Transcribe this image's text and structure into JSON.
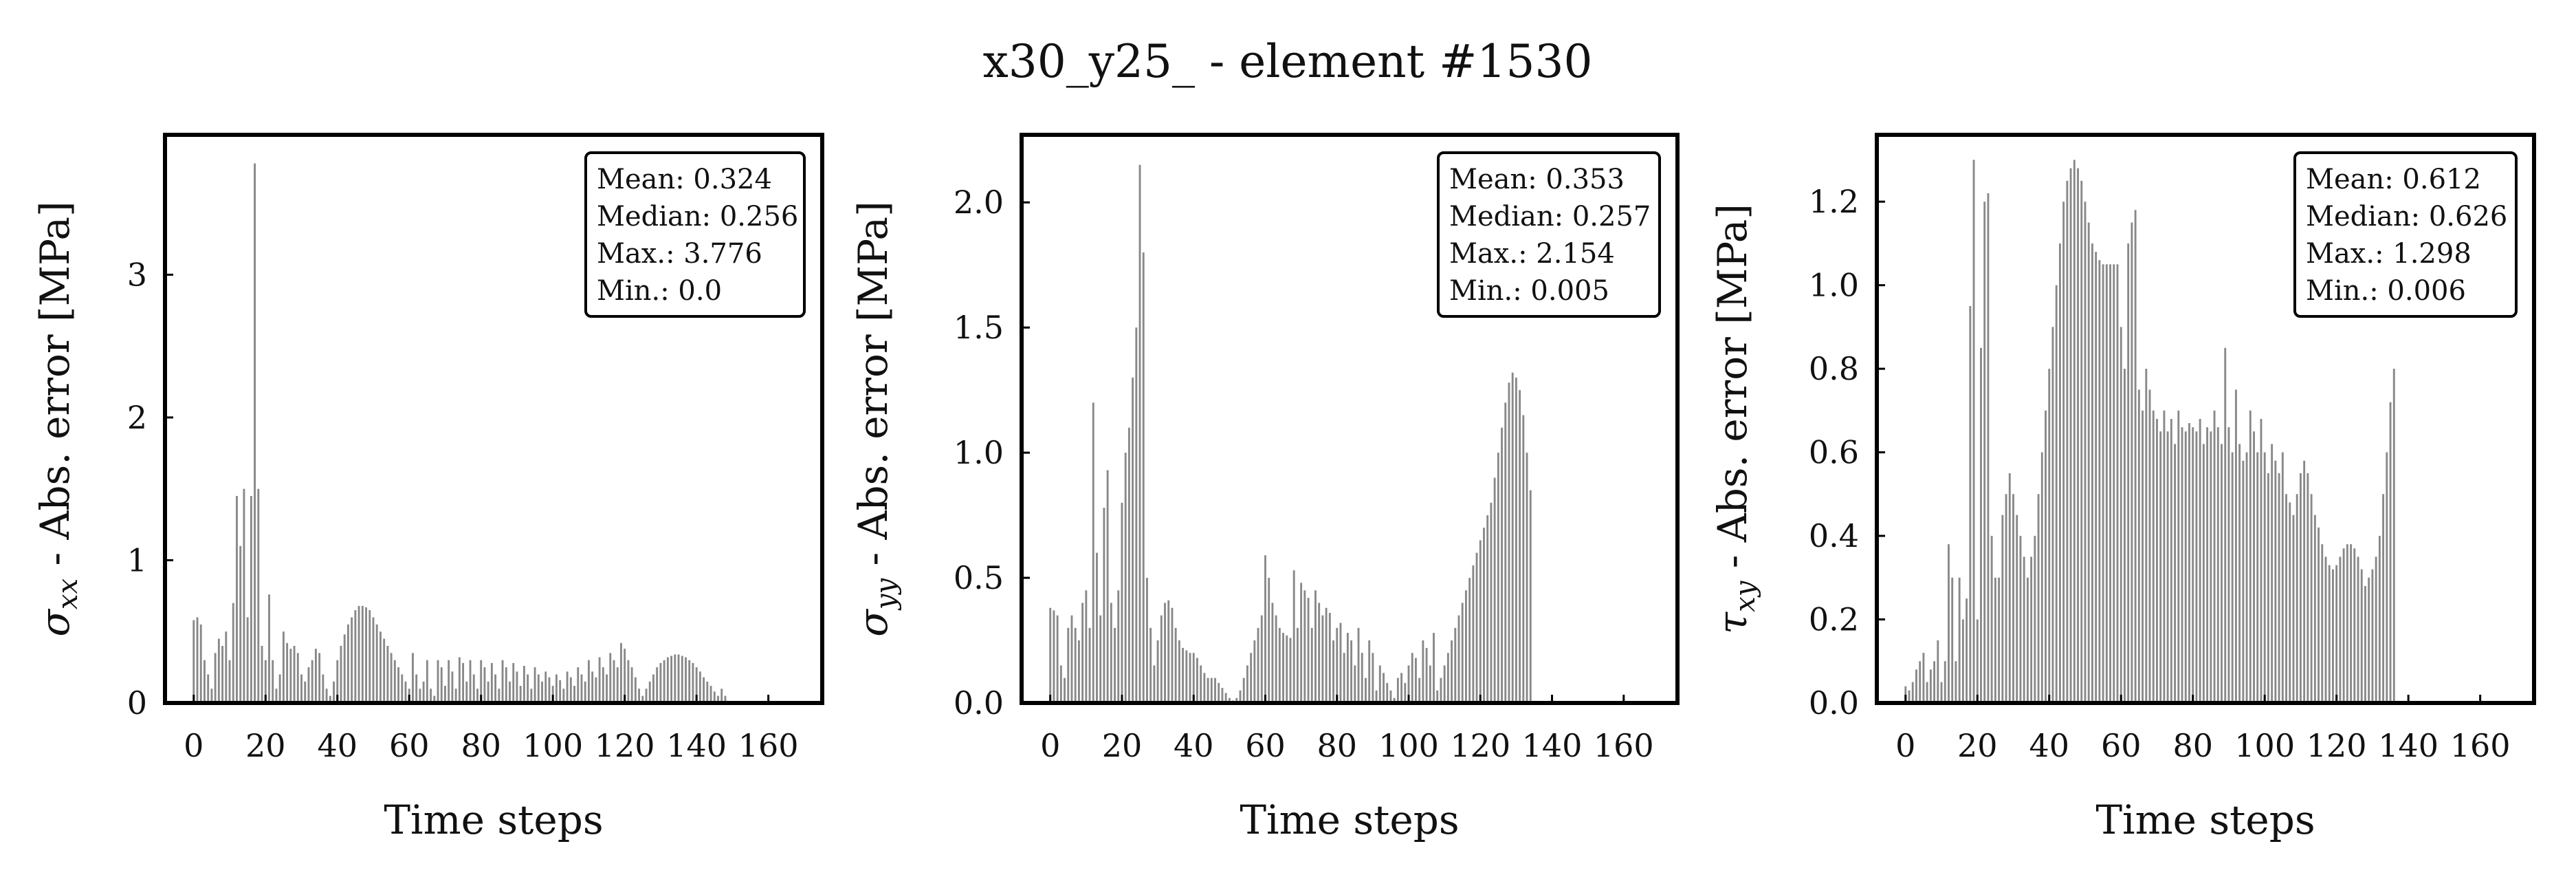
{
  "figure": {
    "suptitle": "x30_y25_ - element #1530"
  },
  "chart_data": [
    {
      "type": "bar",
      "xlabel": "Time steps",
      "ylabel": "σ_xx - Abs. error [MPa]",
      "ylabel_main": "σ",
      "ylabel_sub": "xx",
      "ylabel_rest": " - Abs. error [MPa]",
      "xlim": [
        -8,
        175
      ],
      "ylim": [
        0,
        3.98
      ],
      "xticks": [
        0,
        20,
        40,
        60,
        80,
        100,
        120,
        140,
        160
      ],
      "xtick_labels": [
        "0",
        "20",
        "40",
        "60",
        "80",
        "100",
        "120",
        "140",
        "160"
      ],
      "yticks": [
        0,
        1,
        2,
        3
      ],
      "ytick_labels": [
        "0",
        "1",
        "2",
        "3"
      ],
      "bar_color": "#888888",
      "stats": {
        "mean": "Mean: 0.324",
        "median": "Median: 0.256",
        "max": "Max.: 3.776",
        "min": "Min.: 0.0"
      },
      "values": [
        0.58,
        0.6,
        0.55,
        0.3,
        0.2,
        0.1,
        0.35,
        0.45,
        0.4,
        0.5,
        0.3,
        0.7,
        1.45,
        1.1,
        1.5,
        0.6,
        1.45,
        3.78,
        1.5,
        0.4,
        0.3,
        0.76,
        0.3,
        0.1,
        0.2,
        0.5,
        0.42,
        0.38,
        0.4,
        0.35,
        0.2,
        0.15,
        0.25,
        0.3,
        0.38,
        0.35,
        0.2,
        0.1,
        0.05,
        0.15,
        0.3,
        0.4,
        0.48,
        0.55,
        0.6,
        0.65,
        0.68,
        0.68,
        0.67,
        0.65,
        0.6,
        0.55,
        0.5,
        0.45,
        0.4,
        0.35,
        0.3,
        0.25,
        0.2,
        0.15,
        0.1,
        0.35,
        0.2,
        0.1,
        0.15,
        0.3,
        0.1,
        0.05,
        0.3,
        0.25,
        0.12,
        0.3,
        0.22,
        0.1,
        0.32,
        0.28,
        0.15,
        0.3,
        0.2,
        0.1,
        0.3,
        0.25,
        0.15,
        0.28,
        0.2,
        0.1,
        0.3,
        0.25,
        0.15,
        0.28,
        0.22,
        0.12,
        0.26,
        0.2,
        0.1,
        0.25,
        0.2,
        0.15,
        0.22,
        0.18,
        0.12,
        0.2,
        0.16,
        0.1,
        0.22,
        0.18,
        0.12,
        0.25,
        0.2,
        0.15,
        0.3,
        0.22,
        0.18,
        0.32,
        0.25,
        0.2,
        0.35,
        0.3,
        0.25,
        0.42,
        0.38,
        0.3,
        0.25,
        0.18,
        0.1,
        0.05,
        0.1,
        0.15,
        0.2,
        0.25,
        0.28,
        0.3,
        0.32,
        0.33,
        0.34,
        0.34,
        0.33,
        0.32,
        0.3,
        0.28,
        0.25,
        0.22,
        0.18,
        0.15,
        0.12,
        0.08,
        0.05,
        0.1,
        0.05
      ]
    },
    {
      "type": "bar",
      "xlabel": "Time steps",
      "ylabel": "σ_yy - Abs. error [MPa]",
      "ylabel_main": "σ",
      "ylabel_sub": "yy",
      "ylabel_rest": " - Abs. error [MPa]",
      "xlim": [
        -8,
        175
      ],
      "ylim": [
        0,
        2.27
      ],
      "xticks": [
        0,
        20,
        40,
        60,
        80,
        100,
        120,
        140,
        160
      ],
      "xtick_labels": [
        "0",
        "20",
        "40",
        "60",
        "80",
        "100",
        "120",
        "140",
        "160"
      ],
      "yticks": [
        0,
        0.5,
        1.0,
        1.5,
        2.0
      ],
      "ytick_labels": [
        "0.0",
        "0.5",
        "1.0",
        "1.5",
        "2.0"
      ],
      "bar_color": "#888888",
      "stats": {
        "mean": "Mean: 0.353",
        "median": "Median: 0.257",
        "max": "Max.: 2.154",
        "min": "Min.: 0.005"
      },
      "values": [
        0.38,
        0.37,
        0.35,
        0.15,
        0.1,
        0.3,
        0.35,
        0.3,
        0.25,
        0.4,
        0.45,
        0.3,
        1.2,
        0.6,
        0.35,
        0.78,
        0.93,
        0.4,
        0.3,
        0.45,
        0.8,
        1.0,
        1.1,
        1.3,
        1.5,
        2.15,
        1.8,
        0.5,
        0.3,
        0.15,
        0.25,
        0.35,
        0.4,
        0.41,
        0.38,
        0.3,
        0.25,
        0.22,
        0.21,
        0.2,
        0.2,
        0.18,
        0.15,
        0.12,
        0.1,
        0.1,
        0.1,
        0.08,
        0.06,
        0.04,
        0.02,
        0.01,
        0.02,
        0.05,
        0.1,
        0.15,
        0.2,
        0.25,
        0.3,
        0.35,
        0.59,
        0.5,
        0.4,
        0.35,
        0.3,
        0.28,
        0.27,
        0.26,
        0.53,
        0.3,
        0.48,
        0.45,
        0.42,
        0.3,
        0.45,
        0.4,
        0.35,
        0.38,
        0.36,
        0.25,
        0.3,
        0.32,
        0.2,
        0.28,
        0.25,
        0.15,
        0.3,
        0.2,
        0.1,
        0.25,
        0.2,
        0.05,
        0.15,
        0.12,
        0.08,
        0.05,
        0.02,
        0.1,
        0.12,
        0.08,
        0.15,
        0.2,
        0.18,
        0.1,
        0.25,
        0.22,
        0.15,
        0.28,
        0.05,
        0.1,
        0.15,
        0.2,
        0.25,
        0.3,
        0.35,
        0.4,
        0.45,
        0.5,
        0.55,
        0.6,
        0.65,
        0.7,
        0.75,
        0.8,
        0.9,
        1.0,
        1.1,
        1.2,
        1.28,
        1.32,
        1.3,
        1.25,
        1.15,
        1.0,
        0.85
      ]
    },
    {
      "type": "bar",
      "xlabel": "Time steps",
      "ylabel": "τ_xy - Abs. error [MPa]",
      "ylabel_main": "τ",
      "ylabel_sub": "xy",
      "ylabel_rest": " - Abs. error [MPa]",
      "xlim": [
        -8,
        175
      ],
      "ylim": [
        0,
        1.36
      ],
      "xticks": [
        0,
        20,
        40,
        60,
        80,
        100,
        120,
        140,
        160
      ],
      "xtick_labels": [
        "0",
        "20",
        "40",
        "60",
        "80",
        "100",
        "120",
        "140",
        "160"
      ],
      "yticks": [
        0,
        0.2,
        0.4,
        0.6,
        0.8,
        1.0,
        1.2
      ],
      "ytick_labels": [
        "0.0",
        "0.2",
        "0.4",
        "0.6",
        "0.8",
        "1.0",
        "1.2"
      ],
      "bar_color": "#888888",
      "stats": {
        "mean": "Mean: 0.612",
        "median": "Median: 0.626",
        "max": "Max.: 1.298",
        "min": "Min.: 0.006"
      },
      "values": [
        0.04,
        0.03,
        0.05,
        0.08,
        0.1,
        0.12,
        0.05,
        0.08,
        0.1,
        0.15,
        0.05,
        0.1,
        0.38,
        0.3,
        0.1,
        0.3,
        0.2,
        0.25,
        0.95,
        1.3,
        0.2,
        0.85,
        1.2,
        1.22,
        0.4,
        0.3,
        0.3,
        0.45,
        0.5,
        0.55,
        0.5,
        0.45,
        0.4,
        0.35,
        0.3,
        0.35,
        0.4,
        0.5,
        0.6,
        0.7,
        0.8,
        0.9,
        1.0,
        1.1,
        1.2,
        1.25,
        1.28,
        1.3,
        1.28,
        1.25,
        1.2,
        1.15,
        1.1,
        1.08,
        1.06,
        1.05,
        1.05,
        1.05,
        1.05,
        1.05,
        0.9,
        0.8,
        1.1,
        1.15,
        1.18,
        0.75,
        0.7,
        0.8,
        0.75,
        0.7,
        0.68,
        0.65,
        0.7,
        0.65,
        0.68,
        0.62,
        0.7,
        0.66,
        0.65,
        0.67,
        0.66,
        0.65,
        0.68,
        0.62,
        0.66,
        0.65,
        0.7,
        0.66,
        0.62,
        0.85,
        0.66,
        0.6,
        0.75,
        0.62,
        0.58,
        0.6,
        0.7,
        0.65,
        0.6,
        0.68,
        0.6,
        0.55,
        0.62,
        0.58,
        0.55,
        0.6,
        0.5,
        0.48,
        0.45,
        0.5,
        0.55,
        0.58,
        0.55,
        0.5,
        0.45,
        0.42,
        0.38,
        0.35,
        0.33,
        0.32,
        0.33,
        0.35,
        0.37,
        0.38,
        0.38,
        0.37,
        0.35,
        0.32,
        0.28,
        0.3,
        0.32,
        0.35,
        0.4,
        0.5,
        0.6,
        0.72,
        0.8
      ]
    }
  ]
}
